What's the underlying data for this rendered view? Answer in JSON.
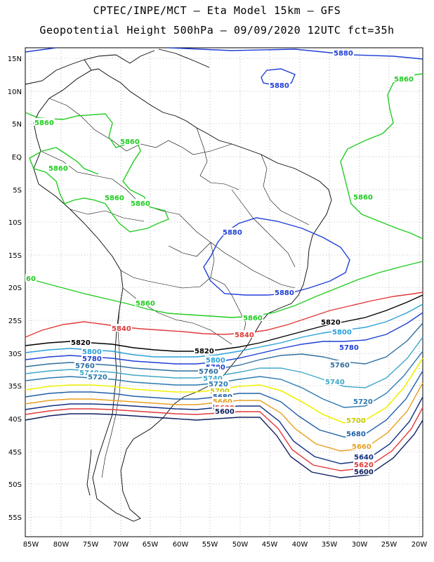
{
  "header": {
    "line1": "CPTEC/INPE/MCT –  Eta Model 15km – GFS",
    "line2": "Geopotential Height 500hPa – 09/09/2020 12UTC fct=35h"
  },
  "axes": {
    "lat_labels": [
      "15N",
      "10N",
      "5N",
      "EQ",
      "5S",
      "10S",
      "15S",
      "20S",
      "25S",
      "30S",
      "35S",
      "40S",
      "45S",
      "50S",
      "55S"
    ],
    "lon_labels": [
      "85W",
      "80W",
      "75W",
      "70W",
      "65W",
      "60W",
      "55W",
      "50W",
      "45W",
      "40W",
      "35W",
      "30W",
      "25W",
      "20W"
    ]
  },
  "contours": {
    "c5880": {
      "value": "5880",
      "color": "#1f3fd6"
    },
    "c5860": {
      "value": "5860",
      "color": "#22cc22"
    },
    "c5840": {
      "value": "5840",
      "color": "#e03a3a"
    },
    "c5820": {
      "value": "5820",
      "color": "#000000"
    },
    "c5800": {
      "value": "5800",
      "color": "#2aa0d8"
    },
    "c5780": {
      "value": "5780",
      "color": "#1f3fd6"
    },
    "c5760": {
      "value": "5760",
      "color": "#2f6f9f"
    },
    "c5740": {
      "value": "5740",
      "color": "#3fa8c8"
    },
    "c5720": {
      "value": "5720",
      "color": "#2a7ab0"
    },
    "c5700": {
      "value": "5700",
      "color": "#f0f000"
    },
    "c5680": {
      "value": "5680",
      "color": "#2060a8"
    },
    "c5660": {
      "value": "5660",
      "color": "#e8a020"
    },
    "c5640": {
      "value": "5640",
      "color": "#103080"
    },
    "c5620": {
      "value": "5620",
      "color": "#e03a3a"
    },
    "c5600": {
      "value": "5600",
      "color": "#102060"
    },
    "c5860_west": {
      "value": "60"
    }
  }
}
